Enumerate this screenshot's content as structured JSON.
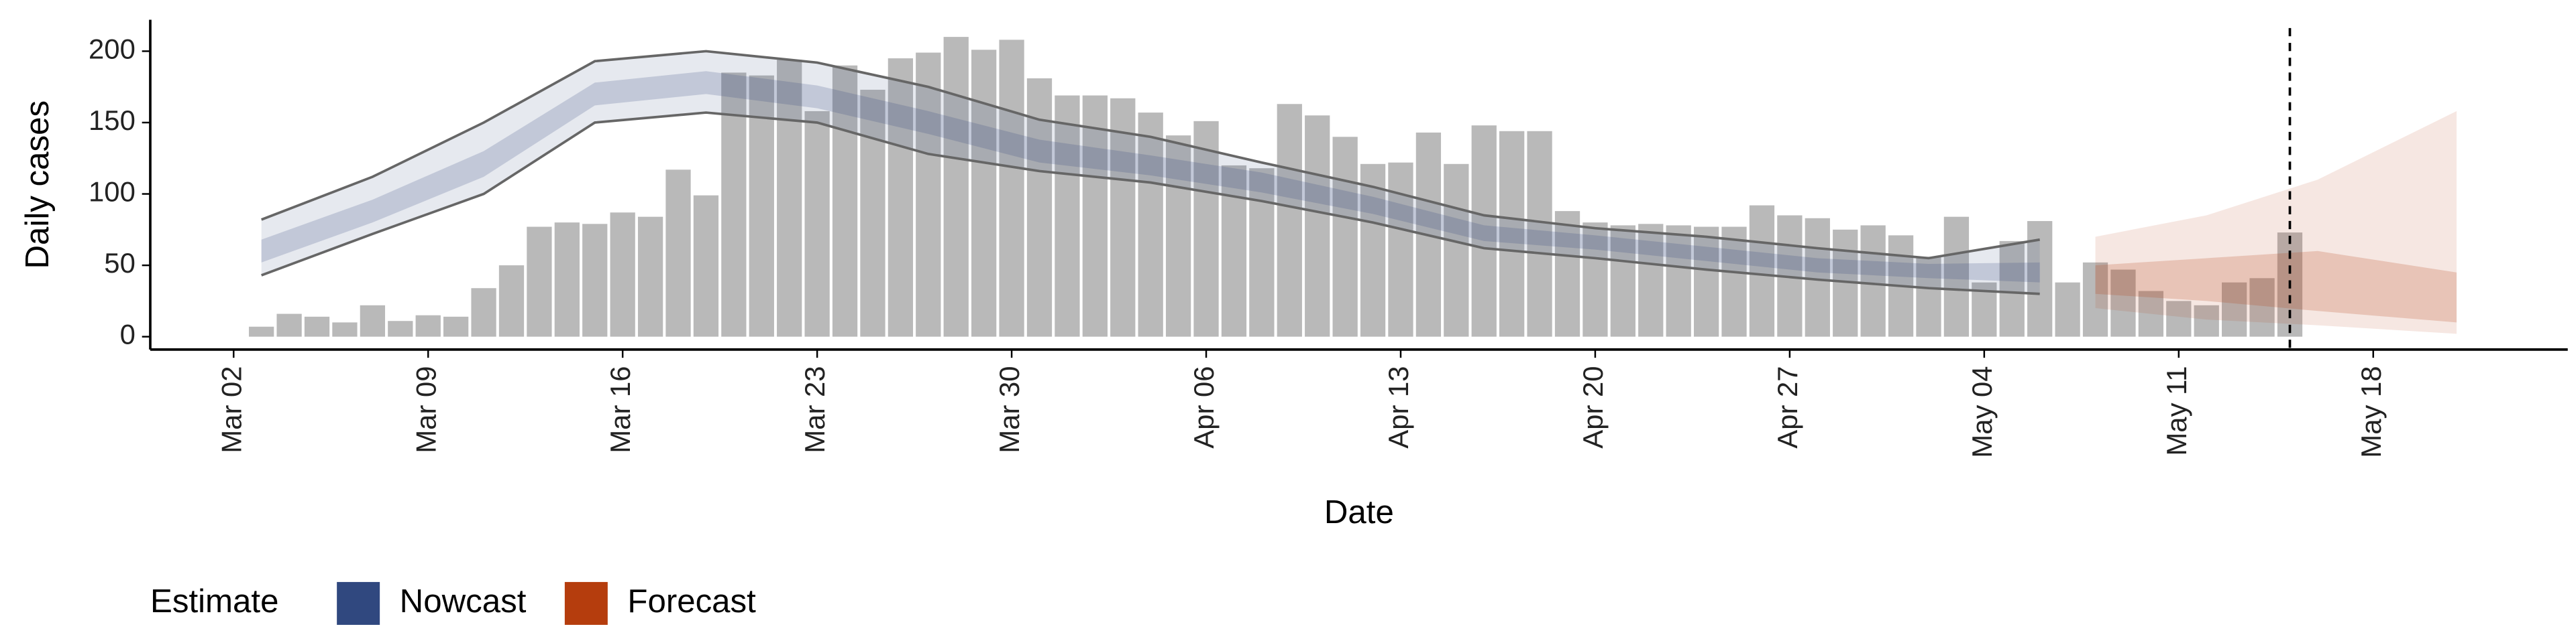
{
  "chart_data": {
    "type": "bar",
    "y_label": "Daily cases",
    "x_label": "Date",
    "legend_title": "Estimate",
    "xlim": [
      "Feb 28",
      "May 25"
    ],
    "xticks": [
      "Mar 02",
      "Mar 09",
      "Mar 16",
      "Mar 23",
      "Mar 30",
      "Apr 06",
      "Apr 13",
      "Apr 20",
      "Apr 27",
      "May 04",
      "May 11",
      "May 18"
    ],
    "ylim": [
      -9,
      222
    ],
    "yticks": [
      0,
      50,
      100,
      150,
      200
    ],
    "vline": "May 15",
    "bar_color": "#b9b9b9",
    "x": [
      "Mar 03",
      "Mar 04",
      "Mar 05",
      "Mar 06",
      "Mar 07",
      "Mar 08",
      "Mar 09",
      "Mar 10",
      "Mar 11",
      "Mar 12",
      "Mar 13",
      "Mar 14",
      "Mar 15",
      "Mar 16",
      "Mar 17",
      "Mar 18",
      "Mar 19",
      "Mar 20",
      "Mar 21",
      "Mar 22",
      "Mar 23",
      "Mar 24",
      "Mar 25",
      "Mar 26",
      "Mar 27",
      "Mar 28",
      "Mar 29",
      "Mar 30",
      "Mar 31",
      "Apr 01",
      "Apr 02",
      "Apr 03",
      "Apr 04",
      "Apr 05",
      "Apr 06",
      "Apr 07",
      "Apr 08",
      "Apr 09",
      "Apr 10",
      "Apr 11",
      "Apr 12",
      "Apr 13",
      "Apr 14",
      "Apr 15",
      "Apr 16",
      "Apr 17",
      "Apr 18",
      "Apr 19",
      "Apr 20",
      "Apr 21",
      "Apr 22",
      "Apr 23",
      "Apr 24",
      "Apr 25",
      "Apr 26",
      "Apr 27",
      "Apr 28",
      "Apr 29",
      "Apr 30",
      "May 01",
      "May 02",
      "May 03",
      "May 04",
      "May 05",
      "May 06",
      "May 07",
      "May 08",
      "May 09",
      "May 10",
      "May 11",
      "May 12",
      "May 13",
      "May 14",
      "May 15"
    ],
    "values": [
      7,
      16,
      14,
      10,
      22,
      11,
      15,
      14,
      34,
      50,
      77,
      80,
      79,
      87,
      84,
      117,
      99,
      185,
      183,
      194,
      158,
      190,
      173,
      195,
      199,
      210,
      201,
      208,
      181,
      169,
      169,
      167,
      157,
      141,
      151,
      120,
      118,
      163,
      155,
      140,
      121,
      122,
      143,
      121,
      148,
      144,
      144,
      88,
      80,
      78,
      79,
      78,
      77,
      77,
      92,
      85,
      83,
      75,
      78,
      71,
      56,
      84,
      38,
      67,
      81,
      38,
      52,
      47,
      32,
      25,
      22,
      38,
      41,
      73
    ],
    "series": [
      {
        "name": "Nowcast",
        "color": "#30487f",
        "x": [
          "Mar 03",
          "Mar 07",
          "Mar 11",
          "Mar 15",
          "Mar 19",
          "Mar 23",
          "Mar 27",
          "Mar 31",
          "Apr 04",
          "Apr 08",
          "Apr 12",
          "Apr 16",
          "Apr 20",
          "Apr 24",
          "Apr 28",
          "May 02",
          "May 06"
        ],
        "lower_90": [
          43,
          72,
          100,
          150,
          157,
          150,
          128,
          116,
          108,
          95,
          80,
          62,
          55,
          47,
          40,
          34,
          30
        ],
        "upper_90": [
          82,
          112,
          150,
          193,
          200,
          192,
          175,
          152,
          140,
          122,
          105,
          85,
          76,
          70,
          62,
          55,
          68
        ],
        "lower_50": [
          52,
          80,
          112,
          162,
          170,
          160,
          142,
          122,
          113,
          101,
          86,
          67,
          61,
          53,
          45,
          41,
          38
        ],
        "upper_50": [
          68,
          96,
          130,
          178,
          186,
          176,
          158,
          138,
          127,
          115,
          98,
          78,
          71,
          63,
          55,
          51,
          52
        ]
      },
      {
        "name": "Forecast",
        "color": "#b53d0d",
        "x": [
          "May 08",
          "May 12",
          "May 16",
          "May 21"
        ],
        "lower_90": [
          20,
          12,
          8,
          2
        ],
        "upper_90": [
          70,
          85,
          110,
          158
        ],
        "lower_50": [
          30,
          25,
          18,
          10
        ],
        "upper_50": [
          50,
          55,
          60,
          45
        ]
      }
    ]
  }
}
